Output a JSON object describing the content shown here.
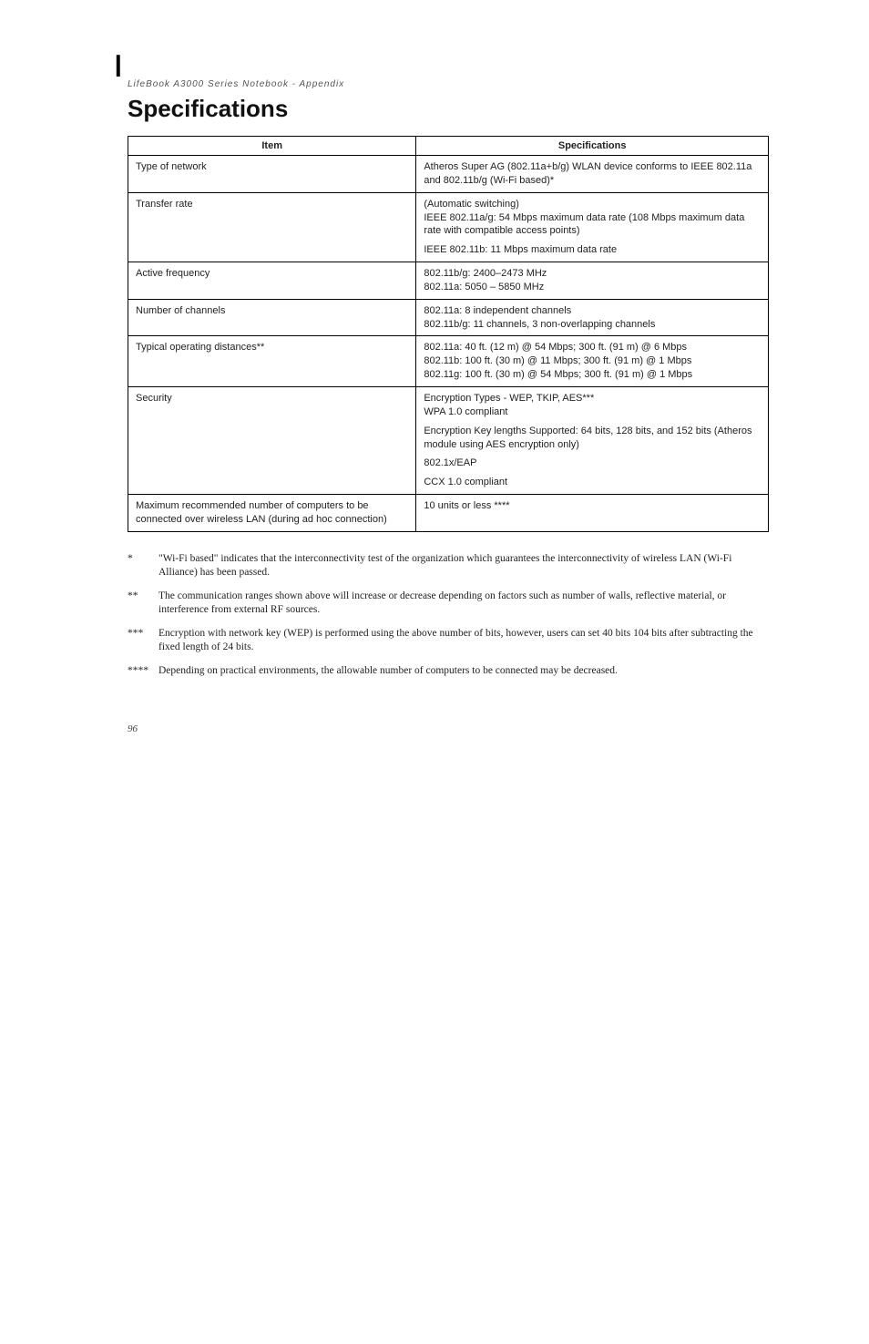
{
  "running_head": "LifeBook A3000 Series Notebook - Appendix",
  "title": "Specifications",
  "page_number": "96",
  "table": {
    "headers": [
      "Item",
      "Specifications"
    ],
    "rows": [
      {
        "item": "Type of network",
        "spec": [
          "Atheros Super AG (802.11a+b/g) WLAN device conforms to IEEE 802.11a and 802.11b/g (Wi-Fi based)*"
        ]
      },
      {
        "item": "Transfer rate",
        "spec": [
          "(Automatic switching)\nIEEE 802.11a/g: 54 Mbps maximum data rate (108 Mbps maximum data rate with compatible access points)",
          "IEEE 802.11b: 11 Mbps maximum data rate"
        ]
      },
      {
        "item": "Active frequency",
        "spec": [
          "802.11b/g: 2400–2473 MHz\n802.11a: 5050 – 5850 MHz"
        ]
      },
      {
        "item": "Number of channels",
        "spec": [
          "802.11a: 8 independent channels\n802.11b/g: 11 channels, 3 non-overlapping channels"
        ]
      },
      {
        "item": "Typical operating distances**",
        "spec": [
          "802.11a: 40 ft. (12 m) @ 54 Mbps; 300 ft. (91 m) @ 6 Mbps\n802.11b: 100 ft. (30 m) @ 11 Mbps; 300 ft. (91 m) @ 1 Mbps\n802.11g: 100 ft. (30 m) @ 54 Mbps; 300 ft. (91 m) @ 1 Mbps"
        ]
      },
      {
        "item": "Security",
        "spec": [
          "Encryption Types - WEP, TKIP, AES***\nWPA 1.0 compliant",
          "Encryption Key lengths Supported: 64 bits, 128 bits, and 152 bits (Atheros module using AES encryption only)",
          "802.1x/EAP",
          "CCX 1.0 compliant"
        ]
      },
      {
        "item": "Maximum recommended number of computers to be connected over wireless LAN (during ad hoc connection)",
        "spec": [
          "10 units or less ****"
        ]
      }
    ]
  },
  "footnotes": [
    {
      "star": "*",
      "text": "\"Wi-Fi based\" indicates that the interconnectivity test of the organization which guarantees the interconnectivity of wireless LAN (Wi-Fi Alliance) has been passed."
    },
    {
      "star": "**",
      "text": "The communication ranges shown above will increase or decrease depending on factors such as number of walls, reflective material, or interference from external RF sources."
    },
    {
      "star": "***",
      "text": "Encryption with network key (WEP) is performed using the above number of bits, however, users can set 40 bits 104 bits after subtracting the fixed length of 24 bits."
    },
    {
      "star": "****",
      "text": "Depending on practical environments, the allowable number of computers to be connected may be decreased."
    }
  ]
}
